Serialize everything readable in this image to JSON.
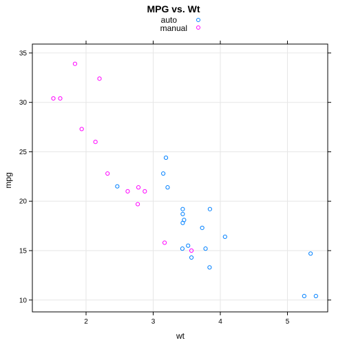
{
  "chart_data": {
    "type": "scatter",
    "title": "MPG vs. Wt",
    "xlabel": "wt",
    "ylabel": "mpg",
    "xlim": [
      1.2,
      5.6
    ],
    "ylim": [
      8.8,
      35.9
    ],
    "xticks": [
      2,
      3,
      4,
      5
    ],
    "yticks": [
      10,
      15,
      20,
      25,
      30,
      35
    ],
    "grid": true,
    "legend_position": "top",
    "series": [
      {
        "name": "auto",
        "color": "#0080ff",
        "points": [
          [
            3.215,
            21.4
          ],
          [
            3.44,
            18.7
          ],
          [
            3.46,
            18.1
          ],
          [
            3.57,
            14.3
          ],
          [
            3.19,
            24.4
          ],
          [
            3.15,
            22.8
          ],
          [
            3.44,
            19.2
          ],
          [
            3.44,
            17.8
          ],
          [
            4.07,
            16.4
          ],
          [
            3.73,
            17.3
          ],
          [
            3.78,
            15.2
          ],
          [
            5.25,
            10.4
          ],
          [
            5.424,
            10.4
          ],
          [
            5.345,
            14.7
          ],
          [
            2.465,
            21.5
          ],
          [
            3.52,
            15.5
          ],
          [
            3.435,
            15.2
          ],
          [
            3.84,
            13.3
          ],
          [
            3.845,
            19.2
          ]
        ]
      },
      {
        "name": "manual",
        "color": "#ff00ff",
        "points": [
          [
            2.62,
            21.0
          ],
          [
            2.875,
            21.0
          ],
          [
            2.32,
            22.8
          ],
          [
            2.2,
            32.4
          ],
          [
            1.615,
            30.4
          ],
          [
            1.835,
            33.9
          ],
          [
            1.935,
            27.3
          ],
          [
            2.14,
            26.0
          ],
          [
            1.513,
            30.4
          ],
          [
            3.17,
            15.8
          ],
          [
            2.77,
            19.7
          ],
          [
            2.78,
            21.4
          ],
          [
            3.57,
            15.0
          ]
        ]
      }
    ]
  }
}
